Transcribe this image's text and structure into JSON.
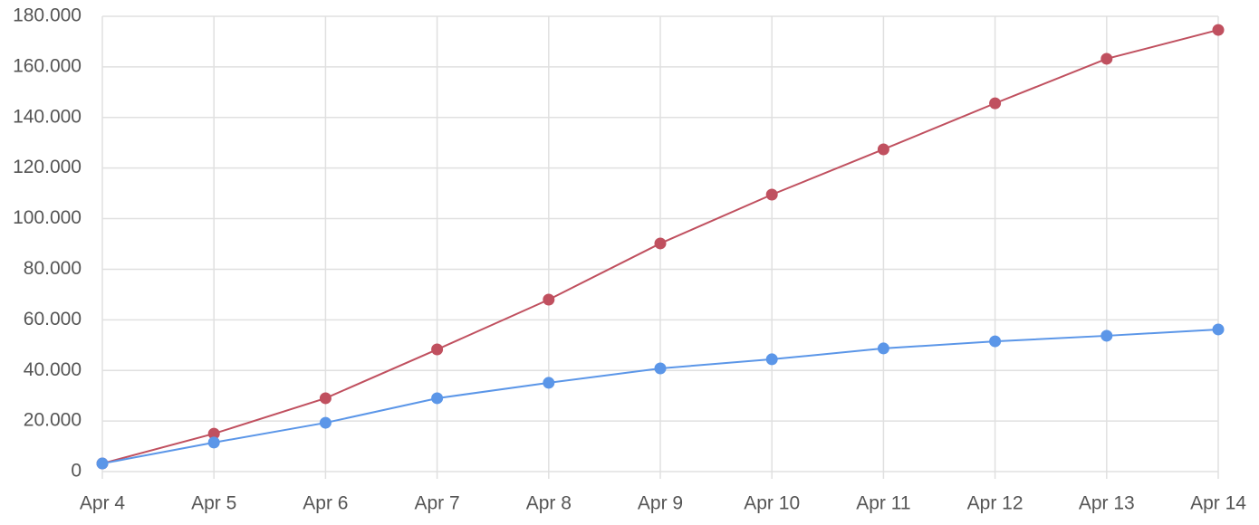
{
  "chart_data": {
    "type": "line",
    "categories": [
      "Apr 4",
      "Apr 5",
      "Apr 6",
      "Apr 7",
      "Apr 8",
      "Apr 9",
      "Apr 10",
      "Apr 11",
      "Apr 12",
      "Apr 13",
      "Apr 14"
    ],
    "series": [
      {
        "color": "#c0505f",
        "values": [
          3200,
          15000,
          29000,
          48300,
          68000,
          90200,
          109500,
          127400,
          145600,
          163200,
          174600
        ]
      },
      {
        "color": "#5b96e8",
        "values": [
          3200,
          11500,
          19300,
          29000,
          35100,
          40800,
          44400,
          48700,
          51500,
          53700,
          56200
        ]
      }
    ],
    "ylim": [
      0,
      180000
    ],
    "yticks": [
      0,
      {
        "value": 20000,
        "label": "20.000"
      },
      {
        "value": 40000,
        "label": "40.000"
      },
      {
        "value": 60000,
        "label": "60.000"
      },
      {
        "value": 80000,
        "label": "80.000"
      },
      {
        "value": 100000,
        "label": "100.000"
      },
      {
        "value": 120000,
        "label": "120.000"
      },
      {
        "value": 140000,
        "label": "140.000"
      },
      {
        "value": 160000,
        "label": "160.000"
      },
      {
        "value": 180000,
        "label": "180.000"
      }
    ],
    "grid": true
  }
}
